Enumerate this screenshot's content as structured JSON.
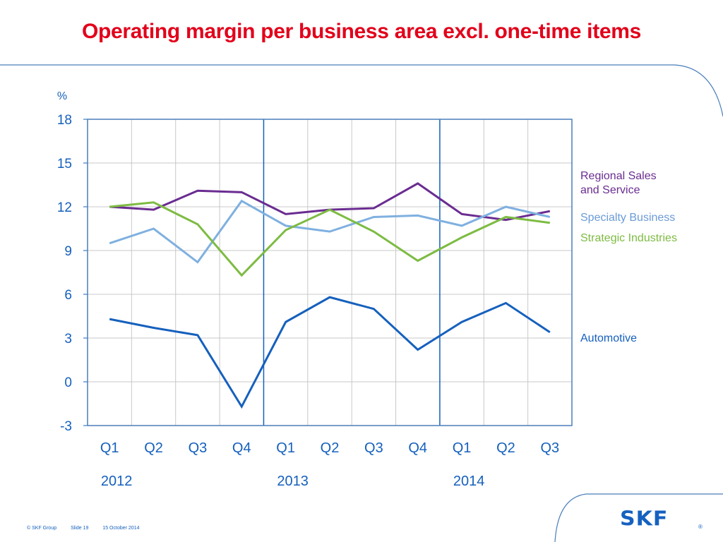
{
  "slide": {
    "title": "Operating margin per business area excl. one-time items",
    "footer": {
      "copyright": "© SKF Group",
      "slide": "Slide 19",
      "date": "15 October 2014"
    },
    "logo": {
      "text": "SKF",
      "mark": "®",
      "color": "#1561c0"
    }
  },
  "chart_data": {
    "type": "line",
    "title": "Operating margin per business area excl. one-time items",
    "ylabel": "%",
    "xlabel": "",
    "ylim": [
      -3,
      18
    ],
    "yticks": [
      -3,
      0,
      3,
      6,
      9,
      12,
      15,
      18
    ],
    "grid": true,
    "categories": [
      "Q1",
      "Q2",
      "Q3",
      "Q4",
      "Q1",
      "Q2",
      "Q3",
      "Q4",
      "Q1",
      "Q2",
      "Q3"
    ],
    "year_groups": [
      {
        "label": "2012",
        "start": 0,
        "end": 3
      },
      {
        "label": "2013",
        "start": 4,
        "end": 7
      },
      {
        "label": "2014",
        "start": 8,
        "end": 10
      }
    ],
    "legend_placement": "right",
    "series": [
      {
        "name": "Regional Sales and Service",
        "color": "#6a2c91",
        "values": [
          12.0,
          11.8,
          13.1,
          13.0,
          11.5,
          11.8,
          11.9,
          13.6,
          11.5,
          11.1,
          11.7
        ]
      },
      {
        "name": "Specialty Business",
        "color": "#7fb0e0",
        "values": [
          9.5,
          10.5,
          8.2,
          12.4,
          10.7,
          10.3,
          11.3,
          11.4,
          10.7,
          12.0,
          11.3
        ]
      },
      {
        "name": "Strategic Industries",
        "color": "#7dbb42",
        "values": [
          12.0,
          12.3,
          10.8,
          7.3,
          10.4,
          11.8,
          10.3,
          8.3,
          9.9,
          11.3,
          10.9
        ]
      },
      {
        "name": "Automotive",
        "color": "#1560bd",
        "values": [
          4.3,
          3.7,
          3.2,
          -1.7,
          4.1,
          5.8,
          5.0,
          2.2,
          4.1,
          5.4,
          3.4
        ]
      }
    ],
    "legend": [
      {
        "lines": [
          "Regional Sales",
          "and Service"
        ],
        "color": "#6a2c91"
      },
      {
        "lines": [
          "Specialty Business"
        ],
        "color": "#6a9bd8"
      },
      {
        "lines": [
          "Strategic Industries"
        ],
        "color": "#7dbb42"
      },
      {
        "lines": [
          "Automotive"
        ],
        "color": "#1560bd"
      }
    ],
    "axis_color": "#1560bd",
    "grid_color": "#c8c8c8"
  }
}
